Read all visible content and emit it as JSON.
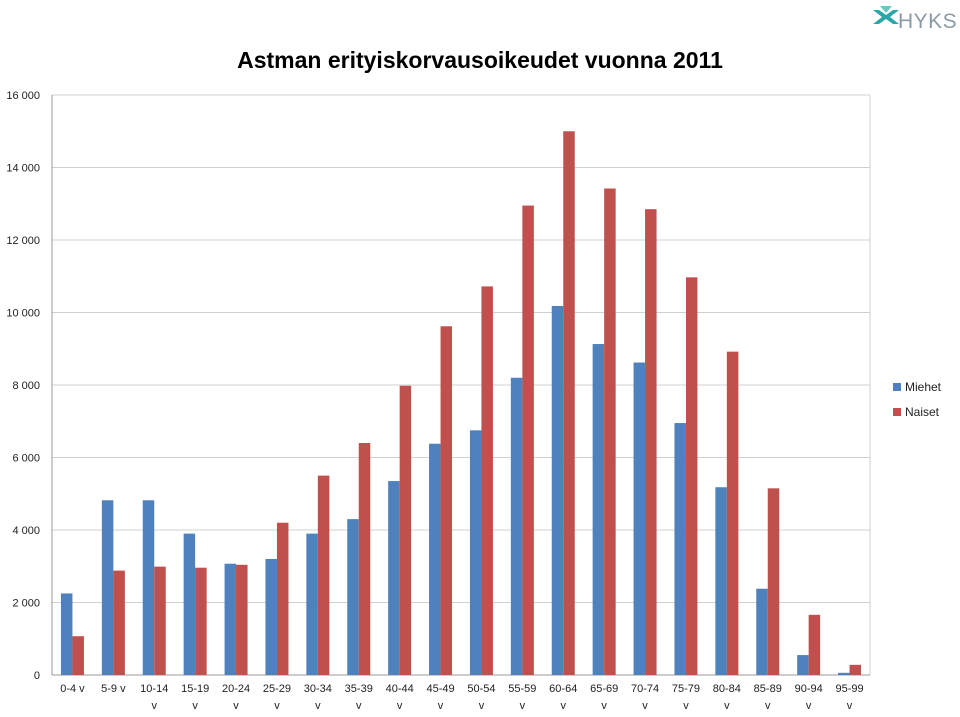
{
  "header": {
    "logo_text": "HYKS"
  },
  "chart_data": {
    "type": "bar",
    "title": "Astman erityiskorvausoikeudet vuonna 2011",
    "xlabel": "",
    "ylabel": "",
    "ylim": [
      0,
      16000
    ],
    "yticks": [
      0,
      2000,
      4000,
      6000,
      8000,
      10000,
      12000,
      14000,
      16000
    ],
    "ytick_labels": [
      "0",
      "2 000",
      "4 000",
      "6 000",
      "8 000",
      "10 000",
      "12 000",
      "14 000",
      "16 000"
    ],
    "grid": true,
    "legend_position": "right",
    "categories": [
      "0-4 v",
      "5-9 v",
      "10-14 v",
      "15-19 v",
      "20-24 v",
      "25-29 v",
      "30-34 v",
      "35-39 v",
      "40-44 v",
      "45-49 v",
      "50-54 v",
      "55-59 v",
      "60-64 v",
      "65-69 v",
      "70-74 v",
      "75-79 v",
      "80-84 v",
      "85-89 v",
      "90-94 v",
      "95-99 v"
    ],
    "category_label_lines": [
      [
        "0-4 v"
      ],
      [
        "5-9 v"
      ],
      [
        "10-14",
        "v"
      ],
      [
        "15-19",
        "v"
      ],
      [
        "20-24",
        "v"
      ],
      [
        "25-29",
        "v"
      ],
      [
        "30-34",
        "v"
      ],
      [
        "35-39",
        "v"
      ],
      [
        "40-44",
        "v"
      ],
      [
        "45-49",
        "v"
      ],
      [
        "50-54",
        "v"
      ],
      [
        "55-59",
        "v"
      ],
      [
        "60-64",
        "v"
      ],
      [
        "65-69",
        "v"
      ],
      [
        "70-74",
        "v"
      ],
      [
        "75-79",
        "v"
      ],
      [
        "80-84",
        "v"
      ],
      [
        "85-89",
        "v"
      ],
      [
        "90-94",
        "v"
      ],
      [
        "95-99",
        "v"
      ]
    ],
    "series": [
      {
        "name": "Miehet",
        "color": "#4f81bd",
        "values": [
          2250,
          4820,
          4820,
          3900,
          3070,
          3200,
          3900,
          4300,
          5350,
          6380,
          6750,
          8200,
          10180,
          9130,
          8620,
          6950,
          5180,
          2380,
          550,
          60
        ]
      },
      {
        "name": "Naiset",
        "color": "#c0504d",
        "values": [
          1070,
          2880,
          2990,
          2960,
          3040,
          4200,
          5500,
          6400,
          7980,
          9620,
          10720,
          12950,
          15000,
          13420,
          12850,
          10970,
          8920,
          5150,
          1660,
          280
        ]
      }
    ]
  }
}
